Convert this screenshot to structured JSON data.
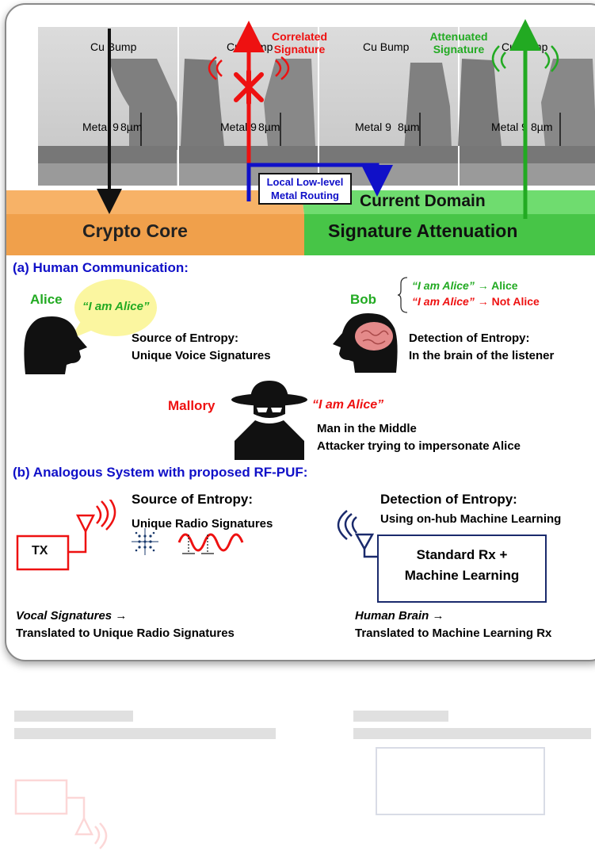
{
  "top": {
    "cu_bump": "Cu Bump",
    "metal9": "Metal 9",
    "dim": "8µm",
    "correlated": "Correlated Signature",
    "attenuated": "Attenuated Signature",
    "local_routing": "Local Low-level Metal Routing",
    "crypto_core": "Crypto Core",
    "current_domain": "Current Domain",
    "signature_attenuation": "Signature Attenuation"
  },
  "a": {
    "heading": "(a) Human Communication:",
    "alice": "Alice",
    "i_am_alice": "“I am Alice”",
    "source_title": "Source of Entropy:",
    "source_desc": "Unique Voice Signatures",
    "bob": "Bob",
    "bob_line1_q": "“I am Alice”",
    "bob_line1_a": "→ Alice",
    "bob_line2_q": "“I am Alice”",
    "bob_line2_a": "→ Not Alice",
    "detect_title": "Detection of Entropy:",
    "detect_desc": "In the brain of the listener",
    "mallory": "Mallory",
    "mallory_quote": "“I am Alice”",
    "mitm": "Man in the Middle",
    "attacker": "Attacker trying to impersonate Alice"
  },
  "b": {
    "heading": "(b) Analogous System with proposed RF-PUF:",
    "source_title": "Source of Entropy:",
    "source_desc": "Unique Radio Signatures",
    "tx": "TX",
    "detect_title": "Detection of Entropy:",
    "detect_desc": "Using on-hub Machine Learning",
    "rx_line1": "Standard Rx +",
    "rx_line2": "Machine Learning",
    "vocal": "Vocal Signatures →",
    "vocal_translated": "Translated to Unique Radio Signatures",
    "brain": "Human Brain →",
    "brain_translated": "Translated to Machine Learning Rx"
  },
  "colors": {
    "blue": "#1010c8",
    "red": "#ee1111",
    "green": "#22aa22",
    "orange": "#f39a3c",
    "navy": "#1a2a6c"
  }
}
